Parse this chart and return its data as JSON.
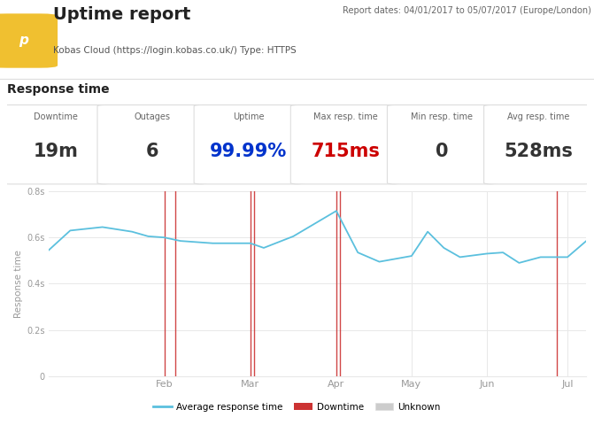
{
  "title": "Uptime report",
  "subtitle": "Kobas Cloud (https://login.kobas.co.uk/) Type: HTTPS",
  "report_dates": "Report dates: 04/01/2017 to 05/07/2017 (Europe/London)",
  "logo_letter": "p",
  "logo_bg": "#f0c030",
  "response_time_label": "Response time",
  "stats": [
    {
      "label": "Downtime",
      "value": "19",
      "unit": "m"
    },
    {
      "label": "Outages",
      "value": "6",
      "unit": ""
    },
    {
      "label": "Uptime",
      "value": "99.99",
      "unit": "%"
    },
    {
      "label": "Max resp. time",
      "value": "715",
      "unit": "ms"
    },
    {
      "label": "Min resp. time",
      "value": "0",
      "unit": ""
    },
    {
      "label": "Avg resp. time",
      "value": "528",
      "unit": "ms"
    }
  ],
  "ylim": [
    0,
    0.8
  ],
  "yticks": [
    0,
    0.2,
    0.4,
    0.6,
    0.8
  ],
  "ytick_labels": [
    "0",
    "0.2s",
    "0.4s",
    "0.6s",
    "0.8s"
  ],
  "x_months": [
    "Feb",
    "Mar",
    "Apr",
    "May",
    "Jun",
    "Jul"
  ],
  "x_month_positions": [
    0.215,
    0.375,
    0.535,
    0.675,
    0.815,
    0.965
  ],
  "line_color": "#5bc0de",
  "downtime_color": "#cc3333",
  "unknown_color": "#cccccc",
  "grid_color": "#e8e8e8",
  "axis_label_color": "#999999",
  "downtime_x": [
    0.215,
    0.235,
    0.375,
    0.382,
    0.535,
    0.542,
    0.945
  ],
  "response_x": [
    0.0,
    0.04,
    0.1,
    0.155,
    0.185,
    0.215,
    0.245,
    0.305,
    0.375,
    0.4,
    0.455,
    0.535,
    0.575,
    0.615,
    0.675,
    0.705,
    0.735,
    0.765,
    0.815,
    0.845,
    0.875,
    0.915,
    0.965,
    0.985,
    1.0
  ],
  "response_y": [
    0.545,
    0.63,
    0.645,
    0.625,
    0.605,
    0.6,
    0.585,
    0.575,
    0.575,
    0.555,
    0.605,
    0.715,
    0.535,
    0.495,
    0.52,
    0.625,
    0.555,
    0.515,
    0.53,
    0.535,
    0.49,
    0.515,
    0.515,
    0.555,
    0.585
  ],
  "bg_color": "#ffffff",
  "border_color": "#dddddd",
  "stat_value_color_uptime": "#0033cc",
  "stat_value_color_max": "#cc0000",
  "stat_value_color_min": "#333333",
  "stat_value_color_default": "#333333"
}
